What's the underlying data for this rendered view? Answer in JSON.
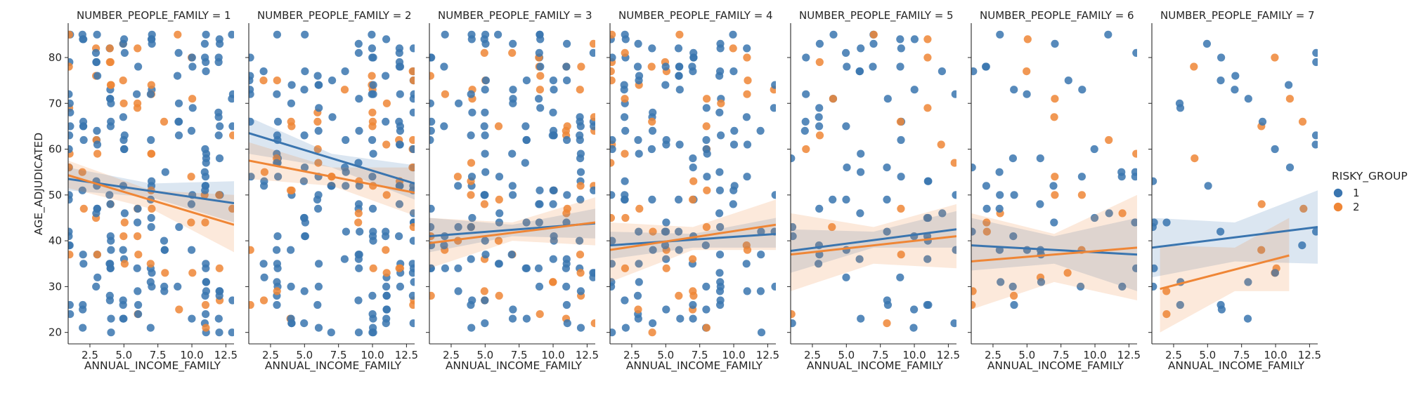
{
  "chart_data": {
    "type": "scatter",
    "facet_variable": "NUMBER_PEOPLE_FAMILY",
    "xlabel": "ANNUAL_INCOME_FAMILY",
    "ylabel": "AGE_ADJUDICATED",
    "xlim": [
      0.9,
      13.1
    ],
    "ylim": [
      17.5,
      87.5
    ],
    "xticks": [
      2.5,
      5.0,
      7.5,
      10.0,
      12.5
    ],
    "xtick_labels": [
      "2.5",
      "5.0",
      "7.5",
      "10.0",
      "12.5"
    ],
    "yticks": [
      20,
      30,
      40,
      50,
      60,
      70,
      80
    ],
    "ytick_labels": [
      "20",
      "30",
      "40",
      "50",
      "60",
      "70",
      "80"
    ],
    "legend": {
      "title": "RISKY_GROUP",
      "placement": "right",
      "entries": [
        {
          "label": "1",
          "color": "#3a75af"
        },
        {
          "label": "2",
          "color": "#ef8636"
        }
      ]
    },
    "series_colors": {
      "1": "#3a75af",
      "2": "#ef8636"
    },
    "panels": [
      {
        "title": "NUMBER_PEOPLE_FAMILY = 1",
        "density": 1.0,
        "lines": [
          {
            "group": "1",
            "x": [
              0.9,
              13.1
            ],
            "y": [
              53.5,
              48.2
            ],
            "ci": [
              [
                0.9,
                51.0,
                56.0
              ],
              [
                7.0,
                49.5,
                52.5
              ],
              [
                13.1,
                44.0,
                53.0
              ]
            ]
          },
          {
            "group": "2",
            "x": [
              0.9,
              13.1
            ],
            "y": [
              54.3,
              43.5
            ],
            "ci": [
              [
                0.9,
                51.5,
                57.5
              ],
              [
                7.0,
                47.0,
                51.0
              ],
              [
                13.1,
                37.5,
                50.0
              ]
            ]
          }
        ]
      },
      {
        "title": "NUMBER_PEOPLE_FAMILY = 2",
        "density": 1.0,
        "lines": [
          {
            "group": "1",
            "x": [
              0.9,
              13.1
            ],
            "y": [
              63.5,
              52.5
            ],
            "ci": [
              [
                0.9,
                59.0,
                67.0
              ],
              [
                7.0,
                56.0,
                59.0
              ],
              [
                13.1,
                49.0,
                56.5
              ]
            ]
          },
          {
            "group": "2",
            "x": [
              0.9,
              13.1
            ],
            "y": [
              57.5,
              50.5
            ],
            "ci": [
              [
                0.9,
                53.5,
                61.5
              ],
              [
                7.0,
                52.0,
                56.0
              ],
              [
                13.1,
                45.5,
                56.0
              ]
            ]
          }
        ]
      },
      {
        "title": "NUMBER_PEOPLE_FAMILY = 3",
        "density": 0.8,
        "lines": [
          {
            "group": "1",
            "x": [
              0.9,
              13.1
            ],
            "y": [
              41.0,
              43.8
            ],
            "ci": [
              [
                0.9,
                37.5,
                45.0
              ],
              [
                7.0,
                41.0,
                43.5
              ],
              [
                13.1,
                40.5,
                47.0
              ]
            ]
          },
          {
            "group": "2",
            "x": [
              0.9,
              13.1
            ],
            "y": [
              39.5,
              44.0
            ],
            "ci": [
              [
                0.9,
                34.0,
                45.0
              ],
              [
                7.0,
                40.0,
                44.0
              ],
              [
                13.1,
                39.0,
                49.5
              ]
            ]
          }
        ]
      },
      {
        "title": "NUMBER_PEOPLE_FAMILY = 4",
        "density": 0.65,
        "lines": [
          {
            "group": "1",
            "x": [
              0.9,
              13.1
            ],
            "y": [
              39.0,
              41.5
            ],
            "ci": [
              [
                0.9,
                36.0,
                42.0
              ],
              [
                7.0,
                38.5,
                41.5
              ],
              [
                13.1,
                38.5,
                45.0
              ]
            ]
          },
          {
            "group": "2",
            "x": [
              0.9,
              13.1
            ],
            "y": [
              38.0,
              43.5
            ],
            "ci": [
              [
                0.9,
                31.0,
                44.0
              ],
              [
                7.0,
                38.0,
                43.0
              ],
              [
                13.1,
                38.0,
                49.0
              ]
            ]
          }
        ]
      },
      {
        "title": "NUMBER_PEOPLE_FAMILY = 5",
        "density": 0.45,
        "lines": [
          {
            "group": "1",
            "x": [
              0.9,
              13.1
            ],
            "y": [
              37.8,
              42.5
            ],
            "ci": [
              [
                0.9,
                33.0,
                42.5
              ],
              [
                7.0,
                38.5,
                42.0
              ],
              [
                13.1,
                38.5,
                46.5
              ]
            ]
          },
          {
            "group": "2",
            "x": [
              0.9,
              13.1
            ],
            "y": [
              37.0,
              41.0
            ],
            "ci": [
              [
                0.9,
                29.0,
                46.0
              ],
              [
                7.0,
                35.0,
                43.0
              ],
              [
                13.1,
                34.0,
                48.0
              ]
            ]
          }
        ]
      },
      {
        "title": "NUMBER_PEOPLE_FAMILY = 6",
        "density": 0.25,
        "lines": [
          {
            "group": "1",
            "x": [
              0.9,
              13.1
            ],
            "y": [
              39.0,
              37.0
            ],
            "ci": [
              [
                0.9,
                33.5,
                45.0
              ],
              [
                7.0,
                35.0,
                41.0
              ],
              [
                13.1,
                29.0,
                45.0
              ]
            ]
          },
          {
            "group": "2",
            "x": [
              0.9,
              13.1
            ],
            "y": [
              35.5,
              38.5
            ],
            "ci": [
              [
                0.9,
                25.0,
                46.0
              ],
              [
                7.0,
                31.0,
                41.5
              ],
              [
                13.1,
                27.0,
                50.0
              ]
            ]
          }
        ]
      },
      {
        "title": "NUMBER_PEOPLE_FAMILY = 7",
        "density": 0.18,
        "lines": [
          {
            "group": "1",
            "x": [
              0.9,
              13.1
            ],
            "y": [
              38.5,
              43.0
            ],
            "ci": [
              [
                0.9,
                32.0,
                45.0
              ],
              [
                7.0,
                35.5,
                44.0
              ],
              [
                13.1,
                35.0,
                51.0
              ]
            ]
          },
          {
            "group": "2",
            "x": [
              1.5,
              11.0
            ],
            "y": [
              29.5,
              36.8
            ],
            "ci": [
              [
                1.5,
                20.0,
                39.0
              ],
              [
                7.0,
                29.0,
                38.5
              ],
              [
                11.0,
                29.0,
                45.0
              ]
            ]
          }
        ]
      }
    ]
  }
}
